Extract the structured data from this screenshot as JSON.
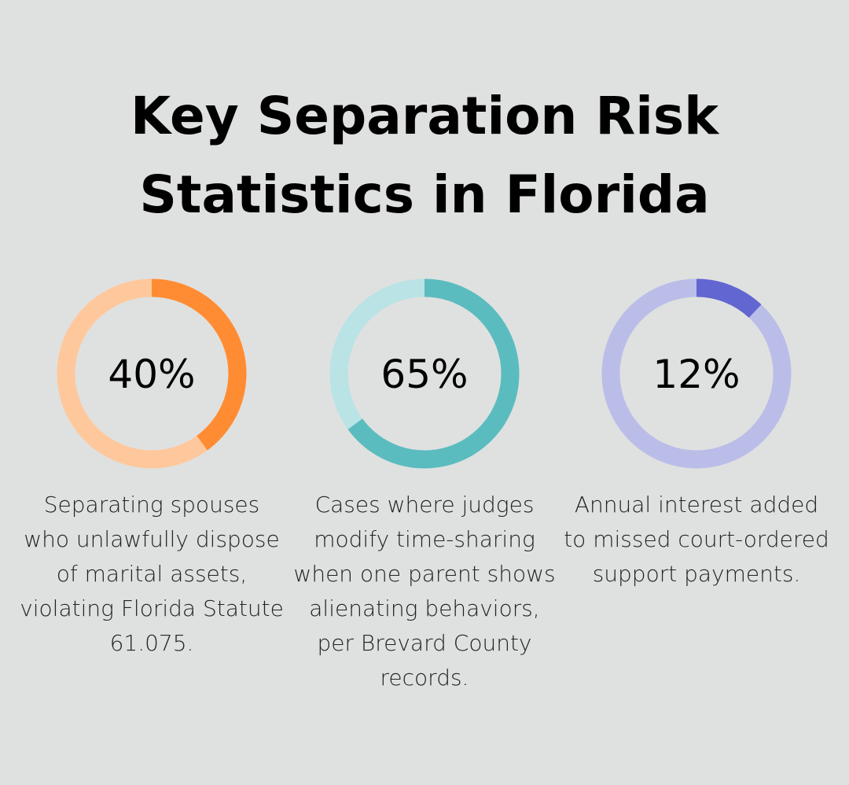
{
  "title": "Key Separation Risk Statistics in Florida",
  "chart_data": [
    {
      "type": "pie",
      "variant": "donut",
      "value": 40,
      "label": "40%",
      "description": "Separating spouses who unlawfully dispose of marital assets, violating Florida Statute 61.075.",
      "color": "#ff8c33",
      "track_color": "#ffc89c"
    },
    {
      "type": "pie",
      "variant": "donut",
      "value": 65,
      "label": "65%",
      "description": "Cases where judges modify time-sharing when one parent shows alienating behaviors, per Brevard County records.",
      "color": "#5bbcbf",
      "track_color": "#b9e3e4"
    },
    {
      "type": "pie",
      "variant": "donut",
      "value": 12,
      "label": "12%",
      "description": "Annual interest added to missed court-ordered support payments.",
      "color": "#6166d1",
      "track_color": "#bbbde9"
    }
  ]
}
